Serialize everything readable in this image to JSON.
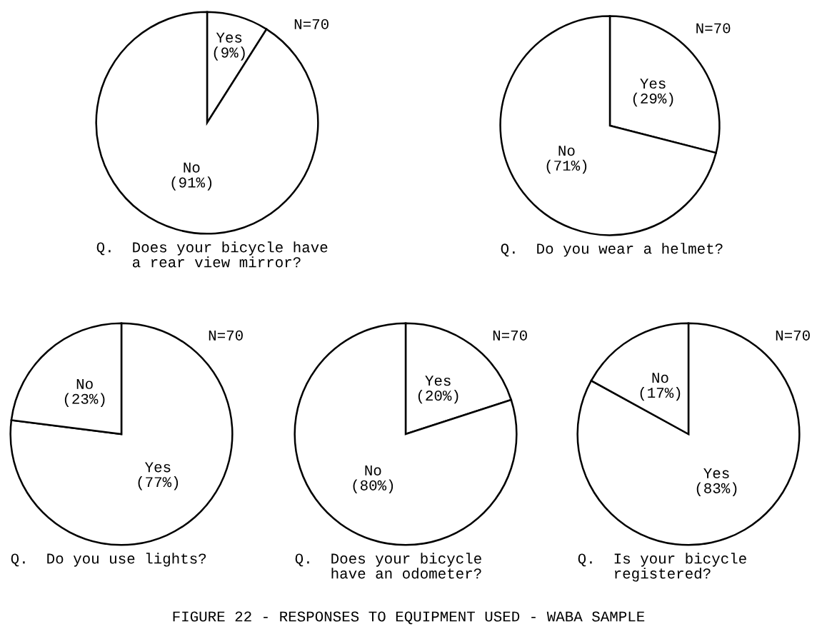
{
  "chart_data": [
    {
      "type": "pie",
      "title": "Q.  Does your bicycle have\n    a rear view mirror?",
      "categories": [
        "Yes",
        "No"
      ],
      "values": [
        9,
        91
      ],
      "value_labels": [
        "(9%)",
        "(91%)"
      ],
      "colors": [
        "#ffffff",
        "#ffffff"
      ],
      "annotations": [
        "N=70"
      ]
    },
    {
      "type": "pie",
      "title": "Q.  Do you wear a helmet?",
      "categories": [
        "Yes",
        "No"
      ],
      "values": [
        29,
        71
      ],
      "value_labels": [
        "(29%)",
        "(71%)"
      ],
      "colors": [
        "#ffffff",
        "#ffffff"
      ],
      "annotations": [
        "N=70"
      ]
    },
    {
      "type": "pie",
      "title": "Q.  Do you use lights?",
      "categories": [
        "Yes",
        "No"
      ],
      "values": [
        77,
        23
      ],
      "value_labels": [
        "(77%)",
        "(23%)"
      ],
      "colors": [
        "#ffffff",
        "#ffffff"
      ],
      "annotations": [
        "N=70"
      ]
    },
    {
      "type": "pie",
      "title": "Q.  Does your bicycle\n    have an odometer?",
      "categories": [
        "Yes",
        "No"
      ],
      "values": [
        20,
        80
      ],
      "value_labels": [
        "(20%)",
        "(80%)"
      ],
      "colors": [
        "#ffffff",
        "#ffffff"
      ],
      "annotations": [
        "N=70"
      ]
    },
    {
      "type": "pie",
      "title": "Q.  Is your bicycle\n    registered?",
      "categories": [
        "Yes",
        "No"
      ],
      "values": [
        83,
        17
      ],
      "value_labels": [
        "(83%)",
        "(17%)"
      ],
      "colors": [
        "#ffffff",
        "#ffffff"
      ],
      "annotations": [
        "N=70",
        "FIGURE 22 - RESPONSES TO EQUIPMENT USED - WABA SAMPLE"
      ]
    }
  ]
}
